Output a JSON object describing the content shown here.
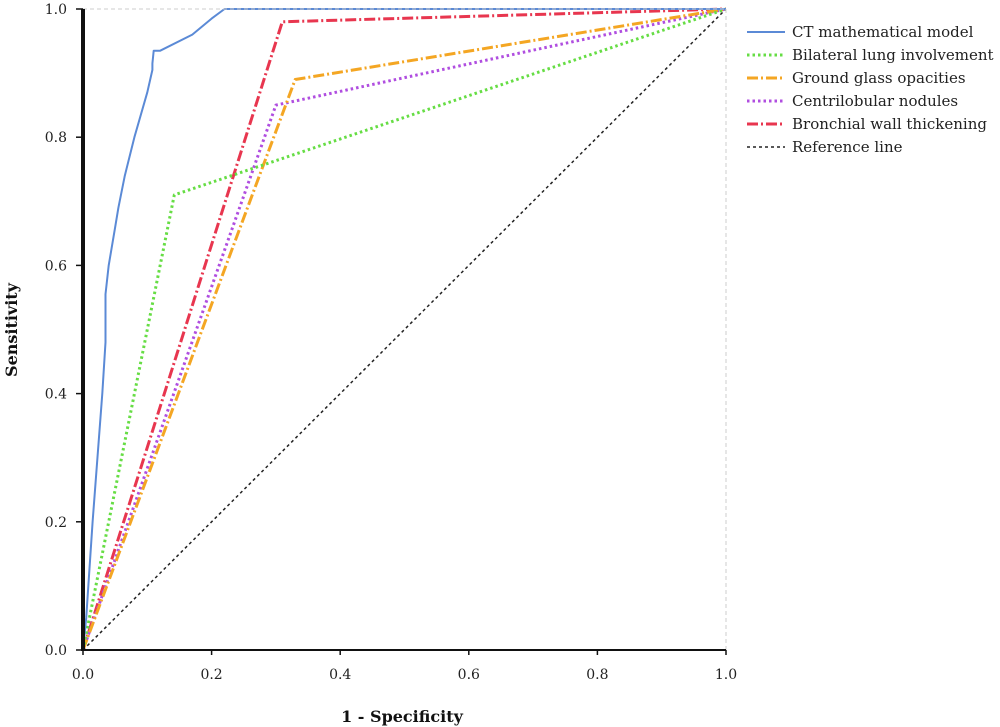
{
  "chart_data": {
    "type": "line",
    "title": "",
    "xlabel": "1 - Specificity",
    "ylabel": "Sensitivity",
    "xlim": [
      0,
      1
    ],
    "ylim": [
      0,
      1
    ],
    "xticks": [
      "0.0",
      "0.2",
      "0.4",
      "0.6",
      "0.8",
      "1.0"
    ],
    "yticks": [
      "0.0",
      "0.2",
      "0.4",
      "0.6",
      "0.8",
      "1.0"
    ],
    "grid": false,
    "legend_position": "right",
    "series": [
      {
        "name": "CT mathematical model",
        "color": "#5b8ad6",
        "dash": "solid",
        "points": [
          [
            0,
            0
          ],
          [
            0.005,
            0.05
          ],
          [
            0.015,
            0.2
          ],
          [
            0.03,
            0.4
          ],
          [
            0.035,
            0.48
          ],
          [
            0.035,
            0.555
          ],
          [
            0.04,
            0.6
          ],
          [
            0.05,
            0.66
          ],
          [
            0.055,
            0.69
          ],
          [
            0.065,
            0.74
          ],
          [
            0.08,
            0.8
          ],
          [
            0.1,
            0.87
          ],
          [
            0.108,
            0.905
          ],
          [
            0.108,
            0.915
          ],
          [
            0.11,
            0.935
          ],
          [
            0.12,
            0.935
          ],
          [
            0.17,
            0.96
          ],
          [
            0.2,
            0.985
          ],
          [
            0.22,
            1.0
          ],
          [
            1.0,
            1.0
          ]
        ]
      },
      {
        "name": "Bilateral lung involvement",
        "color": "#66dd44",
        "dash": "dotted",
        "points": [
          [
            0,
            0
          ],
          [
            0.142,
            0.71
          ],
          [
            1.0,
            1.0
          ]
        ]
      },
      {
        "name": "Ground glass opacities",
        "color": "#f4a623",
        "dash": "dashdot",
        "points": [
          [
            0,
            0
          ],
          [
            0.33,
            0.89
          ],
          [
            1.0,
            1.0
          ]
        ]
      },
      {
        "name": "Centrilobular nodules",
        "color": "#b04ee0",
        "dash": "dotted",
        "points": [
          [
            0,
            0
          ],
          [
            0.3,
            0.85
          ],
          [
            1.0,
            1.0
          ]
        ]
      },
      {
        "name": "Bronchial wall thickening",
        "color": "#e8364f",
        "dash": "dashdot",
        "points": [
          [
            0,
            0
          ],
          [
            0.31,
            0.98
          ],
          [
            1.0,
            1.0
          ]
        ]
      },
      {
        "name": "Reference line",
        "color": "#222222",
        "dash": "dashed",
        "points": [
          [
            0,
            0
          ],
          [
            1.0,
            1.0
          ]
        ]
      }
    ]
  }
}
